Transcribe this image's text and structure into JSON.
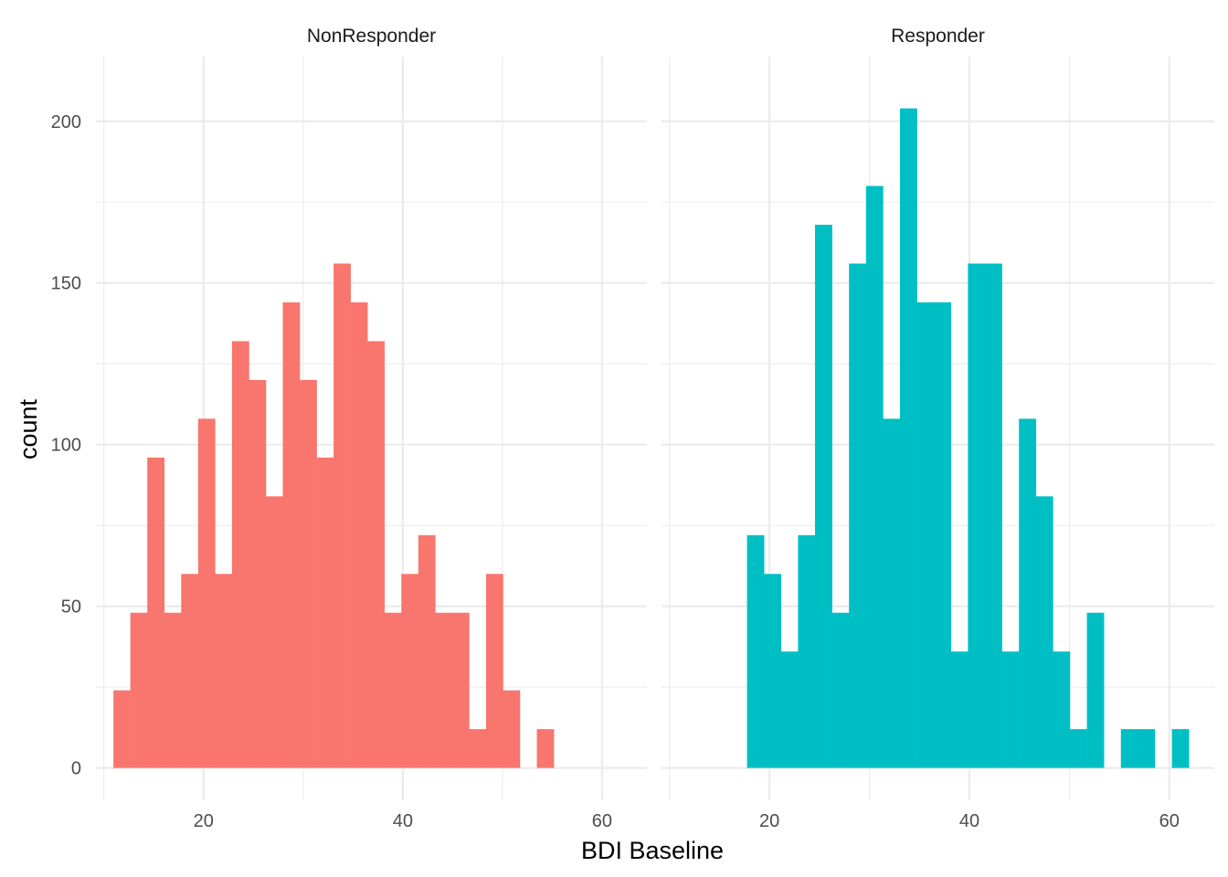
{
  "chart_data": {
    "type": "bar",
    "subtype": "histogram",
    "theme": "minimal",
    "grid": true,
    "legend": "none",
    "xlabel": "BDI Baseline",
    "ylabel": "count",
    "xlim": [
      9.2,
      64.5
    ],
    "ylim": [
      -10,
      220
    ],
    "x_ticks": [
      20,
      40,
      60
    ],
    "y_ticks": [
      0,
      50,
      100,
      150,
      200
    ],
    "bin_width": 1.69,
    "panels": [
      {
        "name": "NonResponder",
        "color": "#F8766D",
        "bins": [
          {
            "x": 11.8,
            "count": 24
          },
          {
            "x": 13.5,
            "count": 48
          },
          {
            "x": 15.2,
            "count": 96
          },
          {
            "x": 16.9,
            "count": 48
          },
          {
            "x": 18.6,
            "count": 60
          },
          {
            "x": 20.3,
            "count": 108
          },
          {
            "x": 22.0,
            "count": 60
          },
          {
            "x": 23.7,
            "count": 132
          },
          {
            "x": 25.4,
            "count": 120
          },
          {
            "x": 27.1,
            "count": 84
          },
          {
            "x": 28.8,
            "count": 144
          },
          {
            "x": 30.5,
            "count": 120
          },
          {
            "x": 32.2,
            "count": 96
          },
          {
            "x": 33.9,
            "count": 156
          },
          {
            "x": 35.6,
            "count": 144
          },
          {
            "x": 37.3,
            "count": 132
          },
          {
            "x": 39.0,
            "count": 48
          },
          {
            "x": 40.7,
            "count": 60
          },
          {
            "x": 42.4,
            "count": 72
          },
          {
            "x": 44.1,
            "count": 48
          },
          {
            "x": 45.8,
            "count": 48
          },
          {
            "x": 47.5,
            "count": 12
          },
          {
            "x": 49.2,
            "count": 60
          },
          {
            "x": 50.9,
            "count": 24
          },
          {
            "x": 52.6,
            "count": 0
          },
          {
            "x": 54.3,
            "count": 12
          }
        ]
      },
      {
        "name": "Responder",
        "color": "#00BFC4",
        "bins": [
          {
            "x": 18.6,
            "count": 72
          },
          {
            "x": 20.3,
            "count": 60
          },
          {
            "x": 22.0,
            "count": 36
          },
          {
            "x": 23.7,
            "count": 72
          },
          {
            "x": 25.4,
            "count": 168
          },
          {
            "x": 27.1,
            "count": 48
          },
          {
            "x": 28.8,
            "count": 156
          },
          {
            "x": 30.5,
            "count": 180
          },
          {
            "x": 32.2,
            "count": 108
          },
          {
            "x": 33.9,
            "count": 204
          },
          {
            "x": 35.6,
            "count": 144
          },
          {
            "x": 37.3,
            "count": 144
          },
          {
            "x": 39.0,
            "count": 36
          },
          {
            "x": 40.7,
            "count": 156
          },
          {
            "x": 42.4,
            "count": 156
          },
          {
            "x": 44.1,
            "count": 36
          },
          {
            "x": 45.8,
            "count": 108
          },
          {
            "x": 47.5,
            "count": 84
          },
          {
            "x": 49.2,
            "count": 36
          },
          {
            "x": 50.9,
            "count": 12
          },
          {
            "x": 52.6,
            "count": 48
          },
          {
            "x": 54.3,
            "count": 0
          },
          {
            "x": 56.0,
            "count": 12
          },
          {
            "x": 57.7,
            "count": 12
          },
          {
            "x": 59.4,
            "count": 0
          },
          {
            "x": 61.1,
            "count": 12
          }
        ]
      }
    ]
  }
}
